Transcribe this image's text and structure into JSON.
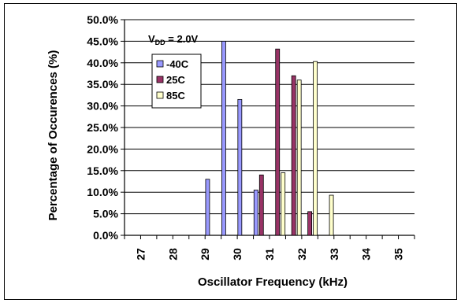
{
  "chart_data": {
    "type": "bar",
    "categories": [
      "27",
      "28",
      "29",
      "30",
      "31",
      "32",
      "33",
      "34",
      "35"
    ],
    "x": [
      29.25,
      29.75,
      30.25,
      30.75,
      31.25,
      31.75,
      32.25,
      32.75
    ],
    "series": [
      {
        "name": "-40C",
        "color": "#9999ff",
        "values": [
          13.0,
          45.0,
          31.5,
          10.5,
          0,
          0,
          0,
          0
        ]
      },
      {
        "name": "25C",
        "color": "#993366",
        "values": [
          0,
          0,
          0,
          14.0,
          43.2,
          37.0,
          5.5,
          0
        ]
      },
      {
        "name": "85C",
        "color": "#ffffcc",
        "values": [
          0,
          0,
          0,
          0,
          14.5,
          36.0,
          40.3,
          9.3
        ]
      }
    ],
    "ylim": [
      0,
      50
    ],
    "xlim": [
      26.5,
      35.5
    ],
    "y_ticks": [
      "0.0%",
      "5.0%",
      "10.0%",
      "15.0%",
      "20.0%",
      "25.0%",
      "30.0%",
      "35.0%",
      "40.0%",
      "45.0%",
      "50.0%"
    ],
    "xlabel": "Oscillator Frequency (kHz)",
    "ylabel": "Percentage of Occurences (%)",
    "legend_title": {
      "main": "V",
      "sub": "DD",
      "rest": " = 2.0V"
    },
    "legend_position": "top-left",
    "grid": true
  }
}
